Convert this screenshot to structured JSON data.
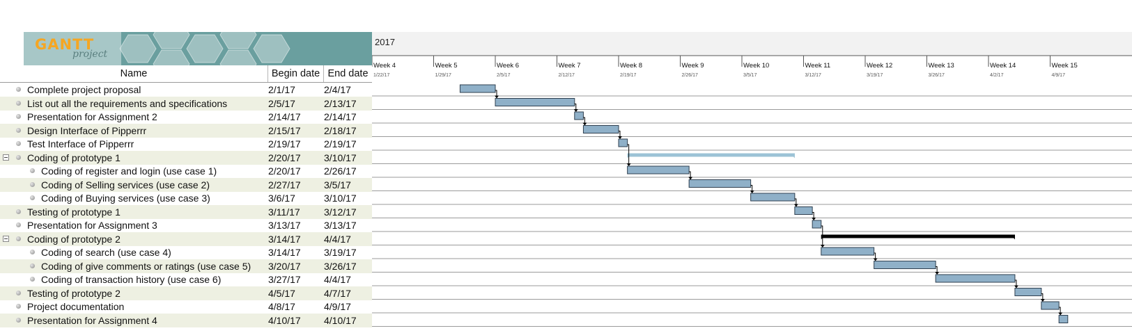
{
  "logo": {
    "brand": "GANTT",
    "sub": "project"
  },
  "columns": {
    "name": "Name",
    "begin": "Begin date",
    "end": "End date"
  },
  "year_label": "2017",
  "weeks": [
    {
      "label": "Week 4",
      "date": "1/22/17"
    },
    {
      "label": "Week 5",
      "date": "1/29/17"
    },
    {
      "label": "Week 6",
      "date": "2/5/17"
    },
    {
      "label": "Week 7",
      "date": "2/12/17"
    },
    {
      "label": "Week 8",
      "date": "2/19/17"
    },
    {
      "label": "Week 9",
      "date": "2/26/17"
    },
    {
      "label": "Week 10",
      "date": "3/5/17"
    },
    {
      "label": "Week 11",
      "date": "3/12/17"
    },
    {
      "label": "Week 12",
      "date": "3/19/17"
    },
    {
      "label": "Week 13",
      "date": "3/26/17"
    },
    {
      "label": "Week 14",
      "date": "4/2/17"
    },
    {
      "label": "Week 15",
      "date": "4/9/17"
    }
  ],
  "tasks": [
    {
      "name": "Complete project proposal",
      "begin": "2/1/17",
      "end": "2/4/17",
      "level": 0,
      "group": false
    },
    {
      "name": "List out all the requirements and specifications",
      "begin": "2/5/17",
      "end": "2/13/17",
      "level": 0,
      "group": false
    },
    {
      "name": "Presentation for Assignment 2",
      "begin": "2/14/17",
      "end": "2/14/17",
      "level": 0,
      "group": false
    },
    {
      "name": "Design Interface of Pipperrr",
      "begin": "2/15/17",
      "end": "2/18/17",
      "level": 0,
      "group": false
    },
    {
      "name": "Test Interface of Pipperrr",
      "begin": "2/19/17",
      "end": "2/19/17",
      "level": 0,
      "group": false
    },
    {
      "name": "Coding of prototype 1",
      "begin": "2/20/17",
      "end": "3/10/17",
      "level": 0,
      "group": true
    },
    {
      "name": "Coding of register and login (use case 1)",
      "begin": "2/20/17",
      "end": "2/26/17",
      "level": 1,
      "group": false
    },
    {
      "name": "Coding of Selling services (use case 2)",
      "begin": "2/27/17",
      "end": "3/5/17",
      "level": 1,
      "group": false
    },
    {
      "name": "Coding of Buying services  (use case 3)",
      "begin": "3/6/17",
      "end": "3/10/17",
      "level": 1,
      "group": false
    },
    {
      "name": "Testing of prototype 1",
      "begin": "3/11/17",
      "end": "3/12/17",
      "level": 0,
      "group": false
    },
    {
      "name": "Presentation for Assignment 3",
      "begin": "3/13/17",
      "end": "3/13/17",
      "level": 0,
      "group": false
    },
    {
      "name": "Coding of prototype 2",
      "begin": "3/14/17",
      "end": "4/4/17",
      "level": 0,
      "group": true
    },
    {
      "name": "Coding of search (use case 4)",
      "begin": "3/14/17",
      "end": "3/19/17",
      "level": 1,
      "group": false
    },
    {
      "name": "Coding of give comments or ratings (use case 5)",
      "begin": "3/20/17",
      "end": "3/26/17",
      "level": 1,
      "group": false
    },
    {
      "name": "Coding of transaction history (use case 6)",
      "begin": "3/27/17",
      "end": "4/4/17",
      "level": 1,
      "group": false
    },
    {
      "name": "Testing of prototype 2",
      "begin": "4/5/17",
      "end": "4/7/17",
      "level": 0,
      "group": false
    },
    {
      "name": "Project documentation",
      "begin": "4/8/17",
      "end": "4/9/17",
      "level": 0,
      "group": false
    },
    {
      "name": "Presentation for Assignment 4",
      "begin": "4/10/17",
      "end": "4/10/17",
      "level": 0,
      "group": false
    }
  ],
  "colors": {
    "task_bar": "#8fb0c8",
    "task_bar_border": "#2f3f4f",
    "summary_1": "#9cc3d6",
    "summary_2": "#000000",
    "row_shade": "#eef0e2",
    "logo_bg": "#6a9f9f",
    "brand": "#f5a623"
  }
}
